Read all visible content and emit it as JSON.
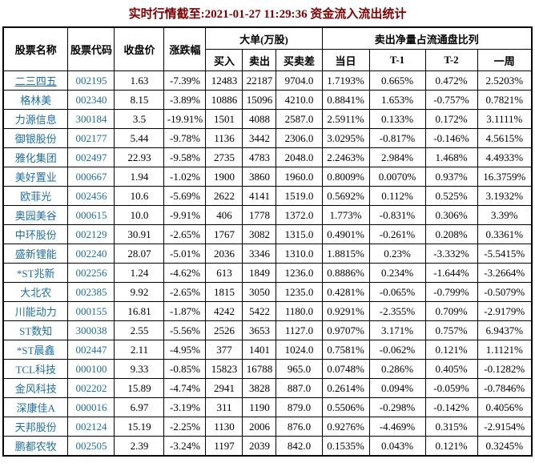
{
  "title": "实时行情截至:2021-01-27 11:29:36 资金流入流出统计",
  "colors": {
    "title_text": "#800000",
    "link_text": "#1c6ea4",
    "table_border": "#000000",
    "body_text": "#000000",
    "background": "#ffffff"
  },
  "table": {
    "header": {
      "stock_name": "股票名称",
      "stock_code": "股票代码",
      "close_price": "收盘价",
      "change_pct": "涨跌幅",
      "large_order_group": "大单(万股)",
      "buy": "买入",
      "sell": "卖出",
      "buy_sell_diff": "买卖差",
      "net_sell_ratio_group": "卖出净量占流通盘比列",
      "day": "当日",
      "t1": "T-1",
      "t2": "T-2",
      "week": "一周"
    },
    "rows": [
      {
        "name": "二三四五",
        "underline": true,
        "code": "002195",
        "close": "1.63",
        "change": "-7.39%",
        "buy": "12483",
        "sell": "22187",
        "diff": "9704.0",
        "day": "1.7193%",
        "t1": "0.665%",
        "t2": "0.472%",
        "week": "2.5203%"
      },
      {
        "name": "格林美",
        "code": "002340",
        "close": "8.15",
        "change": "-3.89%",
        "buy": "10886",
        "sell": "15096",
        "diff": "4210.0",
        "day": "0.8841%",
        "t1": "1.653%",
        "t2": "-0.757%",
        "week": "0.7821%"
      },
      {
        "name": "力源信息",
        "code": "300184",
        "close": "3.5",
        "change": "-19.91%",
        "buy": "1501",
        "sell": "4088",
        "diff": "2587.0",
        "day": "2.5911%",
        "t1": "0.133%",
        "t2": "0.172%",
        "week": "3.1111%"
      },
      {
        "name": "御银股份",
        "code": "002177",
        "close": "5.44",
        "change": "-9.78%",
        "buy": "1136",
        "sell": "3442",
        "diff": "2306.0",
        "day": "3.0295%",
        "t1": "-0.817%",
        "t2": "-0.146%",
        "week": "4.5615%"
      },
      {
        "name": "雅化集团",
        "code": "002497",
        "close": "22.93",
        "change": "-9.58%",
        "buy": "2735",
        "sell": "4783",
        "diff": "2048.0",
        "day": "2.2463%",
        "t1": "2.984%",
        "t2": "1.468%",
        "week": "4.4933%"
      },
      {
        "name": "美好置业",
        "code": "000667",
        "close": "1.94",
        "change": "-1.02%",
        "buy": "1900",
        "sell": "3860",
        "diff": "1960.0",
        "day": "0.8009%",
        "t1": "0.0070%",
        "t2": "0.937%",
        "week": "16.3759%"
      },
      {
        "name": "欧菲光",
        "code": "002456",
        "close": "10.6",
        "change": "-5.69%",
        "buy": "2622",
        "sell": "4141",
        "diff": "1519.0",
        "day": "0.5692%",
        "t1": "0.112%",
        "t2": "0.525%",
        "week": "3.1932%"
      },
      {
        "name": "奥园美谷",
        "code": "000615",
        "close": "10.0",
        "change": "-9.91%",
        "buy": "406",
        "sell": "1778",
        "diff": "1372.0",
        "day": "1.773%",
        "t1": "-0.831%",
        "t2": "0.306%",
        "week": "3.39%"
      },
      {
        "name": "中环股份",
        "code": "002129",
        "close": "30.91",
        "change": "-2.65%",
        "buy": "1767",
        "sell": "3082",
        "diff": "1315.0",
        "day": "0.4901%",
        "t1": "-0.261%",
        "t2": "0.208%",
        "week": "0.3361%"
      },
      {
        "name": "盛新锂能",
        "code": "002240",
        "close": "28.07",
        "change": "-5.01%",
        "buy": "2036",
        "sell": "3346",
        "diff": "1310.0",
        "day": "1.8815%",
        "t1": "0.23%",
        "t2": "-3.332%",
        "week": "-5.5415%"
      },
      {
        "name": "*ST兆新",
        "code": "002256",
        "close": "1.24",
        "change": "-4.62%",
        "buy": "613",
        "sell": "1849",
        "diff": "1236.0",
        "day": "0.8886%",
        "t1": "0.234%",
        "t2": "-1.644%",
        "week": "-3.2664%"
      },
      {
        "name": "大北农",
        "code": "002385",
        "close": "9.92",
        "change": "-2.65%",
        "buy": "1815",
        "sell": "3050",
        "diff": "1235.0",
        "day": "0.4281%",
        "t1": "-0.065%",
        "t2": "-0.799%",
        "week": "-0.5079%"
      },
      {
        "name": "川能动力",
        "code": "000155",
        "close": "16.81",
        "change": "-1.87%",
        "buy": "4242",
        "sell": "5422",
        "diff": "1180.0",
        "day": "0.9291%",
        "t1": "-2.355%",
        "t2": "0.709%",
        "week": "-2.9179%"
      },
      {
        "name": "ST数知",
        "code": "300038",
        "close": "2.55",
        "change": "-5.56%",
        "buy": "2526",
        "sell": "3653",
        "diff": "1127.0",
        "day": "0.9707%",
        "t1": "3.171%",
        "t2": "0.757%",
        "week": "6.9437%"
      },
      {
        "name": "*ST晨鑫",
        "code": "002447",
        "close": "2.11",
        "change": "-4.95%",
        "buy": "377",
        "sell": "1401",
        "diff": "1024.0",
        "day": "0.7581%",
        "t1": "-0.062%",
        "t2": "0.121%",
        "week": "1.1121%"
      },
      {
        "name": "TCL科技",
        "code": "000100",
        "close": "9.33",
        "change": "-0.85%",
        "buy": "15823",
        "sell": "16788",
        "diff": "965.0",
        "day": "0.0748%",
        "t1": "0.286%",
        "t2": "0.405%",
        "week": "-0.1282%"
      },
      {
        "name": "金风科技",
        "code": "002202",
        "close": "15.89",
        "change": "-4.74%",
        "buy": "2941",
        "sell": "3828",
        "diff": "887.0",
        "day": "0.2614%",
        "t1": "0.094%",
        "t2": "-0.059%",
        "week": "-0.7846%"
      },
      {
        "name": "深康佳A",
        "code": "000016",
        "close": "6.97",
        "change": "-3.19%",
        "buy": "311",
        "sell": "1190",
        "diff": "879.0",
        "day": "0.5506%",
        "t1": "-0.298%",
        "t2": "-0.142%",
        "week": "0.4056%"
      },
      {
        "name": "天邦股份",
        "code": "002124",
        "close": "15.19",
        "change": "-2.25%",
        "buy": "1130",
        "sell": "2006",
        "diff": "876.0",
        "day": "0.9276%",
        "t1": "-4.469%",
        "t2": "0.315%",
        "week": "-2.9154%"
      },
      {
        "name": "鹏都农牧",
        "code": "002505",
        "close": "2.39",
        "change": "-3.24%",
        "buy": "1197",
        "sell": "2039",
        "diff": "842.0",
        "day": "0.1535%",
        "t1": "0.043%",
        "t2": "0.121%",
        "week": "0.3245%"
      }
    ]
  }
}
